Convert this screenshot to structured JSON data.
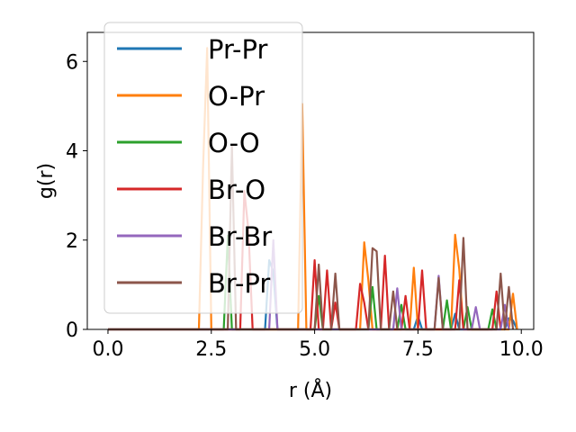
{
  "chart_data": {
    "type": "line",
    "title": "",
    "xlabel": "r (Å)",
    "ylabel": "g(r)",
    "xlim": [
      -0.5,
      10.3
    ],
    "ylim": [
      0,
      6.65
    ],
    "xticks": [
      0.0,
      2.5,
      5.0,
      7.5,
      10.0
    ],
    "xtick_labels": [
      "0.0",
      "2.5",
      "5.0",
      "7.5",
      "10.0"
    ],
    "yticks": [
      0,
      2,
      4,
      6
    ],
    "ytick_labels": [
      "0",
      "2",
      "4",
      "6"
    ],
    "grid": false,
    "legend_position": "upper-left",
    "series": [
      {
        "name": "Pr-Pr",
        "color": "#1f77b4",
        "x": [
          0.0,
          3.8,
          3.9,
          4.0,
          4.1,
          7.4,
          7.5,
          7.6,
          8.3,
          8.4,
          8.5,
          9.6,
          9.7,
          9.8,
          9.9
        ],
        "y": [
          0.0,
          0.0,
          1.55,
          1.3,
          0.0,
          0.0,
          0.3,
          0.0,
          0.0,
          0.35,
          0.0,
          0.0,
          0.25,
          0.2,
          0.0
        ]
      },
      {
        "name": "O-Pr",
        "color": "#ff7f0e",
        "x": [
          0.0,
          2.2,
          2.3,
          2.4,
          2.5,
          4.6,
          4.7,
          4.8,
          6.1,
          6.2,
          6.3,
          6.4,
          7.3,
          7.4,
          7.5,
          8.3,
          8.4,
          8.5,
          8.6,
          9.7,
          9.8,
          9.9
        ],
        "y": [
          0.0,
          0.0,
          3.6,
          6.3,
          0.0,
          0.0,
          5.05,
          0.0,
          0.0,
          1.95,
          1.1,
          0.0,
          0.0,
          1.38,
          0.0,
          0.0,
          2.12,
          1.35,
          0.0,
          0.0,
          0.8,
          0.0
        ],
        "note_hidden": ""
      },
      {
        "name": "O-O",
        "color": "#2ca02c",
        "x": [
          0.0,
          2.8,
          2.9,
          3.0,
          5.0,
          5.1,
          5.2,
          6.3,
          6.4,
          6.5,
          7.0,
          7.1,
          7.2,
          8.1,
          8.2,
          8.3,
          8.6,
          8.7,
          8.8,
          9.2,
          9.3,
          9.4
        ],
        "y": [
          0.0,
          0.0,
          2.1,
          0.0,
          0.0,
          0.75,
          0.0,
          0.0,
          0.95,
          0.0,
          0.0,
          0.55,
          0.0,
          0.0,
          0.65,
          0.0,
          0.0,
          0.5,
          0.0,
          0.0,
          0.45,
          0.0
        ]
      },
      {
        "name": "Br-O",
        "color": "#d62728",
        "x": [
          0.0,
          3.2,
          3.3,
          3.4,
          3.5,
          4.9,
          5.0,
          5.1,
          5.2,
          5.3,
          5.4,
          5.5,
          5.6,
          6.0,
          6.1,
          6.2,
          6.3,
          6.6,
          6.7,
          6.8,
          7.1,
          7.2,
          7.3,
          7.5,
          7.6,
          7.7,
          8.4,
          8.5,
          8.6,
          9.3,
          9.4,
          9.5
        ],
        "y": [
          0.0,
          0.0,
          3.1,
          2.2,
          0.0,
          0.0,
          1.55,
          0.0,
          0.0,
          1.32,
          0.0,
          0.6,
          0.0,
          0.0,
          1.02,
          0.6,
          0.0,
          0.0,
          1.65,
          0.0,
          0.0,
          0.75,
          0.0,
          0.0,
          1.32,
          0.0,
          0.0,
          1.1,
          0.0,
          0.0,
          0.85,
          0.0
        ]
      },
      {
        "name": "Br-Br",
        "color": "#9467bd",
        "x": [
          0.0,
          3.9,
          4.0,
          4.1,
          6.9,
          7.0,
          7.1,
          7.9,
          8.0,
          8.1,
          8.8,
          8.9,
          9.0,
          9.5,
          9.6,
          9.7
        ],
        "y": [
          0.0,
          0.0,
          2.0,
          0.0,
          0.0,
          0.92,
          0.0,
          0.0,
          1.2,
          0.0,
          0.0,
          0.5,
          0.0,
          0.0,
          0.55,
          0.0
        ]
      },
      {
        "name": "Br-Pr",
        "color": "#8c564b",
        "x": [
          0.0,
          2.9,
          3.0,
          3.1,
          5.0,
          5.1,
          5.2,
          5.4,
          5.5,
          5.6,
          6.3,
          6.4,
          6.5,
          6.6,
          6.8,
          6.9,
          7.0,
          7.9,
          8.0,
          8.1,
          8.5,
          8.6,
          8.7,
          9.4,
          9.5,
          9.6,
          9.7,
          9.8
        ],
        "y": [
          0.0,
          0.0,
          4.1,
          0.0,
          0.0,
          1.45,
          0.0,
          0.0,
          1.25,
          0.0,
          0.0,
          1.82,
          1.75,
          0.0,
          0.0,
          0.85,
          0.0,
          0.0,
          1.15,
          0.0,
          0.0,
          2.05,
          0.0,
          0.0,
          1.25,
          0.0,
          0.95,
          0.0
        ]
      }
    ]
  }
}
